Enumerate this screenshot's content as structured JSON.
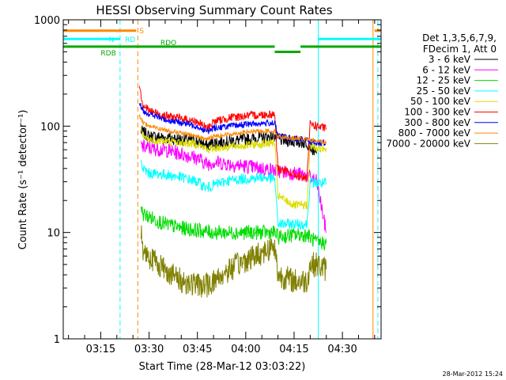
{
  "chart_data": {
    "type": "line",
    "title": "HESSI Observing Summary Count Rates",
    "xlabel": "Start Time (28-Mar-12 03:03:22)",
    "ylabel": "Count Rate (s⁻¹ detector⁻¹)",
    "yscale": "log",
    "ylim": [
      1,
      1000
    ],
    "xlim": [
      "03:03:22",
      "04:42:00"
    ],
    "xticks": [
      "03:15",
      "03:30",
      "03:45",
      "04:00",
      "04:15",
      "04:30"
    ],
    "yticks": [
      "1",
      "10",
      "100",
      "1000"
    ],
    "grid": false,
    "legend_position": "right",
    "legend_header": [
      "Det 1,3,5,6,7,9,",
      "FDecim 1, Att 0"
    ],
    "footer_date": "28-Mar-2012 15:24",
    "flag_labels": {
      "S": "S",
      "N": "N",
      "RD": "RD",
      "RDB": "RDB",
      "RDO": "RDO"
    },
    "series": [
      {
        "name": "3 - 6 keV",
        "color": "#000000",
        "x": [
          "03:27:30",
          "03:30",
          "03:35",
          "03:40",
          "03:45",
          "03:48",
          "03:50",
          "03:55",
          "04:00",
          "04:05",
          "04:09",
          "04:10",
          "04:15",
          "04:19",
          "04:20",
          "04:22"
        ],
        "values": [
          90,
          80,
          78,
          75,
          72,
          65,
          70,
          72,
          75,
          78,
          80,
          75,
          72,
          70,
          65,
          55
        ]
      },
      {
        "name": "6 - 12 keV",
        "color": "#ff00ff",
        "x": [
          "03:27:30",
          "03:30",
          "03:35",
          "03:40",
          "03:45",
          "03:48",
          "03:50",
          "03:55",
          "04:00",
          "04:05",
          "04:09",
          "04:10",
          "04:15",
          "04:19",
          "04:20",
          "04:22",
          "04:25"
        ],
        "values": [
          65,
          62,
          60,
          55,
          50,
          44,
          46,
          44,
          42,
          40,
          38,
          38,
          36,
          34,
          33,
          30,
          10
        ]
      },
      {
        "name": "12 - 25 keV",
        "color": "#00dd00",
        "x": [
          "03:27:30",
          "03:28",
          "03:30",
          "03:35",
          "03:40",
          "03:45",
          "03:50",
          "03:55",
          "04:00",
          "04:05",
          "04:09",
          "04:10",
          "04:15",
          "04:19",
          "04:20",
          "04:22",
          "04:25"
        ],
        "values": [
          18,
          15,
          14,
          12,
          11,
          10.5,
          10,
          10,
          10,
          10,
          10,
          9,
          9.5,
          9.5,
          9,
          8,
          8
        ]
      },
      {
        "name": "25 - 50 keV",
        "color": "#00ffff",
        "x": [
          "03:27:30",
          "03:28",
          "03:30",
          "03:35",
          "03:40",
          "03:45",
          "03:48",
          "03:50",
          "03:55",
          "04:00",
          "04:05",
          "04:09",
          "04:10",
          "04:15",
          "04:19",
          "04:20",
          "04:22",
          "04:25"
        ],
        "values": [
          45,
          40,
          36,
          35,
          33,
          30,
          26,
          28,
          31,
          32,
          33,
          32,
          12,
          12,
          12,
          30,
          29,
          29
        ]
      },
      {
        "name": "50 - 100 keV",
        "color": "#dddd00",
        "x": [
          "03:27:30",
          "03:28",
          "03:30",
          "03:35",
          "03:40",
          "03:45",
          "03:48",
          "03:50",
          "03:55",
          "04:00",
          "04:05",
          "04:09",
          "04:10",
          "04:15",
          "04:19",
          "04:20",
          "04:22",
          "04:25"
        ],
        "values": [
          95,
          80,
          75,
          72,
          70,
          68,
          60,
          62,
          64,
          66,
          68,
          70,
          22,
          18,
          18,
          65,
          62,
          62
        ]
      },
      {
        "name": "100 - 300 keV",
        "color": "#ff0000",
        "x": [
          "03:27:00",
          "03:28",
          "03:30",
          "03:35",
          "03:40",
          "03:45",
          "03:48",
          "03:50",
          "03:55",
          "04:00",
          "04:05",
          "04:09",
          "04:10",
          "04:15",
          "04:19",
          "04:20",
          "04:22",
          "04:25"
        ],
        "values": [
          250,
          160,
          140,
          125,
          118,
          110,
          95,
          110,
          120,
          125,
          128,
          130,
          40,
          35,
          32,
          105,
          100,
          95
        ]
      },
      {
        "name": "300 - 800 keV",
        "color": "#0000ff",
        "x": [
          "03:27:00",
          "03:28",
          "03:30",
          "03:35",
          "03:40",
          "03:45",
          "03:48",
          "03:50",
          "03:55",
          "04:00",
          "04:05",
          "04:09",
          "04:10",
          "04:15",
          "04:19",
          "04:20",
          "04:22",
          "04:25"
        ],
        "values": [
          165,
          140,
          130,
          115,
          108,
          100,
          88,
          96,
          100,
          104,
          106,
          108,
          80,
          76,
          74,
          72,
          70,
          70
        ]
      },
      {
        "name": "800 - 7000 keV",
        "color": "#ff8800",
        "x": [
          "03:27:00",
          "03:28",
          "03:30",
          "03:35",
          "03:40",
          "03:45",
          "03:48",
          "03:50",
          "03:55",
          "04:00",
          "04:05",
          "04:09",
          "04:10",
          "04:15",
          "04:19",
          "04:20",
          "04:22",
          "04:25"
        ],
        "values": [
          125,
          110,
          100,
          92,
          86,
          80,
          75,
          80,
          84,
          88,
          90,
          90,
          80,
          77,
          75,
          74,
          72,
          70
        ]
      },
      {
        "name": "7000 - 20000 keV",
        "color": "#808000",
        "x": [
          "03:27:30",
          "03:28",
          "03:30",
          "03:35",
          "03:40",
          "03:45",
          "03:48",
          "03:50",
          "03:55",
          "04:00",
          "04:05",
          "04:09",
          "04:10",
          "04:15",
          "04:19",
          "04:20",
          "04:22",
          "04:25"
        ],
        "values": [
          10,
          7,
          6,
          4.5,
          3.5,
          3.2,
          3.2,
          3.5,
          4.5,
          5.5,
          6.5,
          7.5,
          4,
          3.5,
          3.5,
          5,
          5,
          4.5
        ]
      }
    ],
    "flag_lines": [
      {
        "color": "#ff8800",
        "label": "S",
        "value": 790,
        "x": [
          "03:03:22",
          "03:26:00"
        ]
      },
      {
        "color": "#00ffff",
        "label": "N",
        "value": 660,
        "x": [
          "03:03:22",
          "03:21:00"
        ]
      },
      {
        "color": "#00aa00",
        "label": "RDB",
        "value": 560,
        "x": [
          "03:03:22",
          "04:09:00"
        ]
      },
      {
        "color": "#00aa00",
        "label": "",
        "value": 500,
        "x": [
          "04:09:00",
          "04:17:00"
        ]
      },
      {
        "color": "#00aa00",
        "label": "",
        "value": 560,
        "x": [
          "04:17:00",
          "04:42:00"
        ]
      },
      {
        "color": "#00ffff",
        "label": "",
        "value": 660,
        "x": [
          "04:22:30",
          "04:42:00"
        ]
      },
      {
        "color": "#ff8800",
        "label": "",
        "value": 790,
        "x": [
          "04:40:00",
          "04:42:00"
        ]
      }
    ],
    "vertical_markers": [
      {
        "x": "03:21:00",
        "color": "#00ffff",
        "style": "dashed"
      },
      {
        "x": "03:26:30",
        "color": "#ff8800",
        "style": "dashed"
      },
      {
        "x": "04:22:30",
        "color": "#00ffff",
        "style": "solid"
      },
      {
        "x": "04:39:30",
        "color": "#ff8800",
        "style": "solid"
      },
      {
        "x": "04:41:00",
        "color": "#00ffff",
        "style": "dashed"
      }
    ]
  }
}
